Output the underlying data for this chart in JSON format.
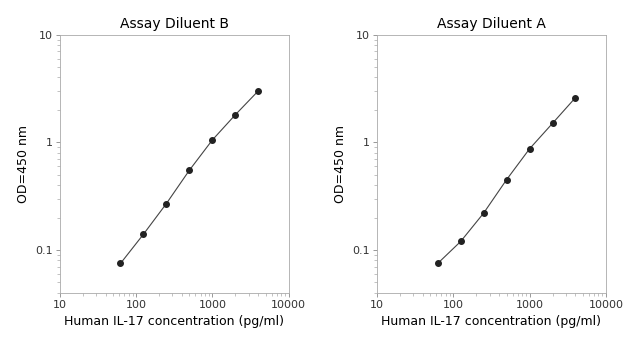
{
  "left_title": "Assay Diluent B",
  "right_title": "Assay Diluent A",
  "xlabel": "Human IL-17 concentration (pg/ml)",
  "ylabel": "OD=450 nm",
  "left_x": [
    62.5,
    125,
    250,
    500,
    1000,
    2000,
    4000
  ],
  "left_y": [
    0.075,
    0.14,
    0.27,
    0.55,
    1.05,
    1.8,
    3.0
  ],
  "right_x": [
    62.5,
    125,
    250,
    500,
    1000,
    2000,
    4000
  ],
  "right_y": [
    0.075,
    0.12,
    0.22,
    0.45,
    0.87,
    1.5,
    2.6
  ],
  "xlim": [
    10,
    10000
  ],
  "ylim": [
    0.04,
    10
  ],
  "line_color": "#444444",
  "marker_color": "#222222",
  "bg_color": "#ffffff",
  "title_fontsize": 10,
  "label_fontsize": 9,
  "tick_fontsize": 8,
  "marker_size": 4,
  "line_width": 0.8
}
